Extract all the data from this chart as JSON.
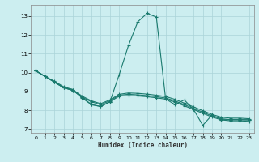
{
  "xlabel": "Humidex (Indice chaleur)",
  "bg_color": "#cceef0",
  "grid_color": "#aad4d8",
  "line_color": "#1a7a6e",
  "xlim": [
    -0.5,
    23.5
  ],
  "ylim": [
    6.8,
    13.6
  ],
  "yticks": [
    7,
    8,
    9,
    10,
    11,
    12,
    13
  ],
  "xticks": [
    0,
    1,
    2,
    3,
    4,
    5,
    6,
    7,
    8,
    9,
    10,
    11,
    12,
    13,
    14,
    15,
    16,
    17,
    18,
    19,
    20,
    21,
    22,
    23
  ],
  "lines": [
    {
      "x": [
        0,
        1,
        2,
        3,
        4,
        5,
        6,
        7,
        8,
        9,
        10,
        11,
        12,
        13,
        14,
        15,
        16,
        17,
        18,
        19,
        20,
        21,
        22,
        23
      ],
      "y": [
        10.1,
        9.8,
        9.5,
        9.2,
        9.1,
        8.65,
        8.3,
        8.2,
        8.45,
        9.9,
        11.45,
        12.7,
        13.15,
        12.95,
        8.6,
        8.3,
        8.55,
        8.05,
        7.2,
        7.75,
        7.5,
        7.5,
        7.5,
        7.5
      ]
    },
    {
      "x": [
        0,
        1,
        2,
        3,
        4,
        5,
        6,
        7,
        8,
        9,
        10,
        11,
        12,
        13,
        14,
        15,
        16,
        17,
        18,
        19,
        20,
        21,
        22,
        23
      ],
      "y": [
        10.1,
        9.8,
        9.5,
        9.2,
        9.05,
        8.7,
        8.45,
        8.3,
        8.5,
        8.8,
        8.85,
        8.82,
        8.78,
        8.72,
        8.65,
        8.5,
        8.3,
        8.1,
        7.9,
        7.7,
        7.55,
        7.5,
        7.5,
        7.48
      ]
    },
    {
      "x": [
        0,
        1,
        2,
        3,
        4,
        5,
        6,
        7,
        8,
        9,
        10,
        11,
        12,
        13,
        14,
        15,
        16,
        17,
        18,
        19,
        20,
        21,
        22,
        23
      ],
      "y": [
        10.1,
        9.8,
        9.55,
        9.25,
        9.1,
        8.75,
        8.5,
        8.35,
        8.55,
        8.85,
        8.92,
        8.9,
        8.86,
        8.8,
        8.73,
        8.58,
        8.38,
        8.18,
        7.98,
        7.78,
        7.63,
        7.58,
        7.58,
        7.55
      ]
    },
    {
      "x": [
        0,
        1,
        2,
        3,
        4,
        5,
        6,
        7,
        8,
        9,
        10,
        11,
        12,
        13,
        14,
        15,
        16,
        17,
        18,
        19,
        20,
        21,
        22,
        23
      ],
      "y": [
        10.1,
        9.8,
        9.5,
        9.2,
        9.05,
        8.7,
        8.3,
        8.2,
        8.45,
        8.75,
        8.78,
        8.76,
        8.72,
        8.66,
        8.59,
        8.44,
        8.24,
        8.04,
        7.84,
        7.64,
        7.49,
        7.44,
        7.44,
        7.41
      ]
    }
  ]
}
